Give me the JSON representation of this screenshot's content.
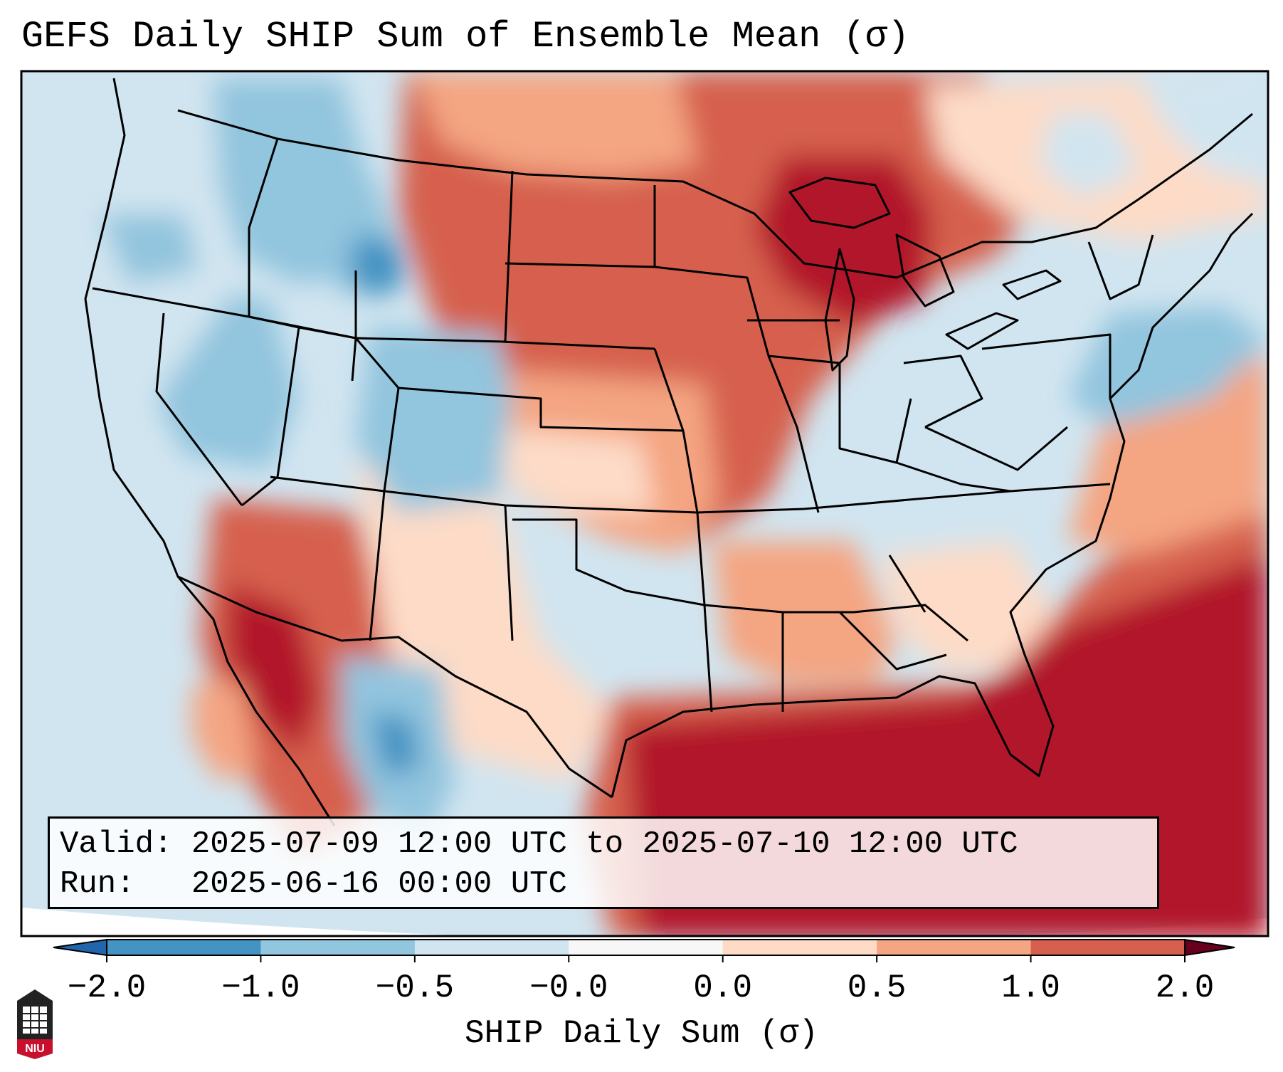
{
  "title": "GEFS Daily SHIP Sum of Ensemble Mean (σ)",
  "info": {
    "valid_label": "Valid:",
    "valid_value": "2025-07-09 12:00 UTC to 2025-07-10 12:00 UTC",
    "run_label": "Run:",
    "run_value": "2025-06-16 00:00 UTC"
  },
  "colorbar": {
    "label": "SHIP Daily Sum (σ)",
    "ticks": [
      "−2.0",
      "−1.0",
      "−0.5",
      "−0.0",
      "0.0",
      "0.5",
      "1.0",
      "2.0"
    ],
    "colors": [
      "#4393c3",
      "#92c5de",
      "#d1e5f0",
      "#f7f7f7",
      "#fddbc7",
      "#f4a582",
      "#d6604d",
      "#b2182b"
    ],
    "under_color": "#2166ac",
    "over_color": "#67001f"
  },
  "map": {
    "region": "Contiguous United States",
    "land_border_color": "#000000"
  },
  "logo": {
    "text": "NIU"
  }
}
